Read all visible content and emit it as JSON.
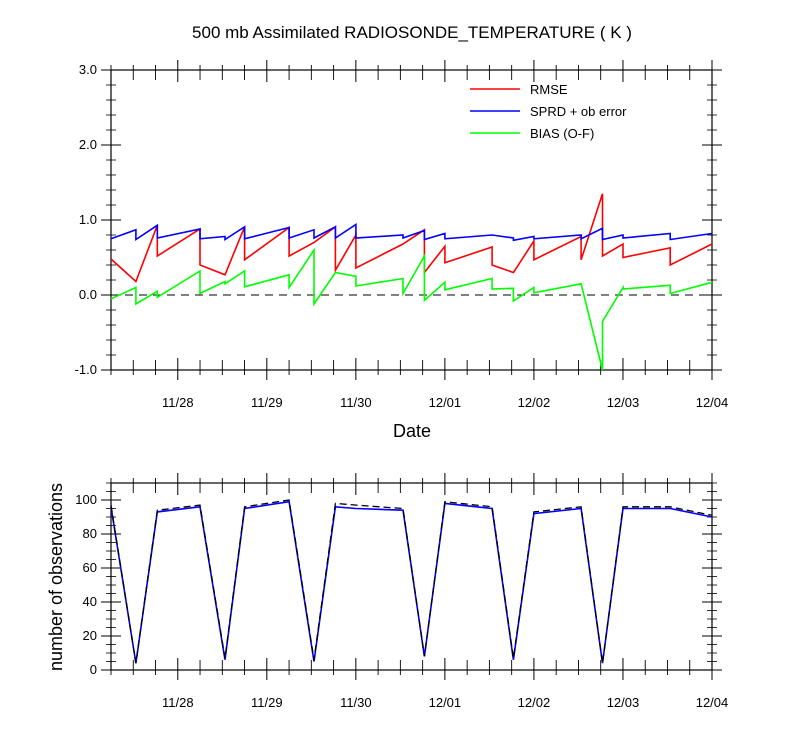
{
  "chart_data": [
    {
      "type": "line",
      "title": "500 mb Assimilated RADIOSONDE_TEMPERATURE ( K )",
      "xlabel": "Date",
      "ylabel": "",
      "ylim": [
        -1.0,
        3.0
      ],
      "yticks": [
        "3.0",
        "2.0",
        "1.0",
        "0.0",
        "-1.0"
      ],
      "ytick_values": [
        3.0,
        2.0,
        1.0,
        0.0,
        -1.0
      ],
      "xlim": [
        27.25,
        34.0
      ],
      "xticks": [
        "11/28",
        "11/29",
        "11/30",
        "12/01",
        "12/02",
        "12/03",
        "12/04"
      ],
      "xtick_values": [
        28,
        29,
        30,
        31,
        32,
        33,
        34
      ],
      "zero_line": "dashed",
      "legend_position": "top-right",
      "series": [
        {
          "name": "RMSE",
          "color": "#ff0000",
          "points": [
            [
              27.25,
              0.48
            ],
            [
              27.53,
              0.18
            ],
            [
              27.77,
              0.93
            ],
            [
              27.77,
              0.52
            ],
            [
              28.25,
              0.88
            ],
            [
              28.25,
              0.4
            ],
            [
              28.53,
              0.27
            ],
            [
              28.75,
              0.91
            ],
            [
              28.75,
              0.47
            ],
            [
              29.25,
              0.9
            ],
            [
              29.25,
              0.52
            ],
            [
              29.53,
              0.7
            ],
            [
              29.77,
              0.91
            ],
            [
              29.77,
              0.33
            ],
            [
              30.0,
              0.8
            ],
            [
              30.0,
              0.36
            ],
            [
              30.53,
              0.68
            ],
            [
              30.77,
              0.87
            ],
            [
              30.77,
              0.3
            ],
            [
              31.0,
              0.65
            ],
            [
              31.0,
              0.43
            ],
            [
              31.53,
              0.64
            ],
            [
              31.53,
              0.4
            ],
            [
              31.77,
              0.3
            ],
            [
              32.0,
              0.72
            ],
            [
              32.0,
              0.47
            ],
            [
              32.53,
              0.78
            ],
            [
              32.53,
              0.47
            ],
            [
              32.77,
              1.35
            ],
            [
              32.77,
              0.52
            ],
            [
              33.0,
              0.68
            ],
            [
              33.0,
              0.5
            ],
            [
              33.53,
              0.63
            ],
            [
              33.53,
              0.4
            ],
            [
              34.0,
              0.68
            ]
          ]
        },
        {
          "name": "SPRD + ob error",
          "color": "#0000ff",
          "points": [
            [
              27.25,
              0.75
            ],
            [
              27.53,
              0.87
            ],
            [
              27.53,
              0.74
            ],
            [
              27.77,
              0.93
            ],
            [
              27.77,
              0.76
            ],
            [
              28.25,
              0.88
            ],
            [
              28.25,
              0.75
            ],
            [
              28.53,
              0.78
            ],
            [
              28.53,
              0.74
            ],
            [
              28.75,
              0.91
            ],
            [
              28.75,
              0.75
            ],
            [
              29.25,
              0.9
            ],
            [
              29.25,
              0.76
            ],
            [
              29.53,
              0.87
            ],
            [
              29.53,
              0.76
            ],
            [
              29.77,
              0.91
            ],
            [
              29.77,
              0.76
            ],
            [
              30.0,
              0.94
            ],
            [
              30.0,
              0.76
            ],
            [
              30.53,
              0.8
            ],
            [
              30.53,
              0.76
            ],
            [
              30.77,
              0.86
            ],
            [
              30.77,
              0.74
            ],
            [
              31.0,
              0.82
            ],
            [
              31.0,
              0.75
            ],
            [
              31.53,
              0.8
            ],
            [
              31.77,
              0.76
            ],
            [
              31.77,
              0.73
            ],
            [
              32.0,
              0.78
            ],
            [
              32.0,
              0.75
            ],
            [
              32.53,
              0.8
            ],
            [
              32.53,
              0.75
            ],
            [
              32.77,
              0.89
            ],
            [
              32.77,
              0.74
            ],
            [
              33.0,
              0.8
            ],
            [
              33.0,
              0.76
            ],
            [
              33.53,
              0.82
            ],
            [
              33.53,
              0.74
            ],
            [
              34.0,
              0.82
            ]
          ]
        },
        {
          "name": "BIAS (O-F)",
          "color": "#00ff00",
          "points": [
            [
              27.25,
              -0.05
            ],
            [
              27.53,
              0.1
            ],
            [
              27.53,
              -0.12
            ],
            [
              27.77,
              0.05
            ],
            [
              27.77,
              -0.03
            ],
            [
              28.25,
              0.32
            ],
            [
              28.25,
              0.02
            ],
            [
              28.53,
              0.18
            ],
            [
              28.53,
              0.15
            ],
            [
              28.75,
              0.32
            ],
            [
              28.75,
              0.11
            ],
            [
              29.25,
              0.27
            ],
            [
              29.25,
              0.1
            ],
            [
              29.53,
              0.6
            ],
            [
              29.53,
              -0.12
            ],
            [
              29.77,
              0.3
            ],
            [
              30.0,
              0.25
            ],
            [
              30.0,
              0.12
            ],
            [
              30.53,
              0.22
            ],
            [
              30.53,
              0.02
            ],
            [
              30.77,
              0.52
            ],
            [
              30.77,
              -0.07
            ],
            [
              31.0,
              0.17
            ],
            [
              31.0,
              0.07
            ],
            [
              31.53,
              0.22
            ],
            [
              31.53,
              0.08
            ],
            [
              31.77,
              0.09
            ],
            [
              31.77,
              -0.08
            ],
            [
              32.0,
              0.1
            ],
            [
              32.0,
              0.03
            ],
            [
              32.53,
              0.15
            ],
            [
              32.77,
              -1.0
            ],
            [
              32.77,
              -0.35
            ],
            [
              33.0,
              0.1
            ],
            [
              33.0,
              0.08
            ],
            [
              33.53,
              0.13
            ],
            [
              33.53,
              0.02
            ],
            [
              34.0,
              0.17
            ]
          ]
        }
      ]
    },
    {
      "type": "line",
      "title": "",
      "xlabel": "",
      "ylabel": "number of observations",
      "ylim": [
        0,
        110
      ],
      "yticks": [
        "0",
        "20",
        "40",
        "60",
        "80",
        "100"
      ],
      "ytick_values": [
        0,
        20,
        40,
        60,
        80,
        100
      ],
      "xlim": [
        27.25,
        34.0
      ],
      "xticks": [
        "11/28",
        "11/29",
        "11/30",
        "12/01",
        "12/02",
        "12/03",
        "12/04"
      ],
      "xtick_values": [
        28,
        29,
        30,
        31,
        32,
        33,
        34
      ],
      "series": [
        {
          "color": "#0000ff",
          "style": "solid",
          "points": [
            [
              27.25,
              96
            ],
            [
              27.53,
              4
            ],
            [
              27.77,
              93
            ],
            [
              28.25,
              96
            ],
            [
              28.53,
              6
            ],
            [
              28.75,
              95
            ],
            [
              29.25,
              99
            ],
            [
              29.53,
              5
            ],
            [
              29.77,
              96
            ],
            [
              30.0,
              95
            ],
            [
              30.53,
              94
            ],
            [
              30.77,
              8
            ],
            [
              31.0,
              98
            ],
            [
              31.53,
              95
            ],
            [
              31.77,
              6
            ],
            [
              32.0,
              92
            ],
            [
              32.53,
              95
            ],
            [
              32.77,
              4
            ],
            [
              33.0,
              95
            ],
            [
              33.53,
              95
            ],
            [
              34.0,
              90
            ]
          ]
        },
        {
          "color": "#000000",
          "style": "dashed",
          "points": [
            [
              27.25,
              97
            ],
            [
              27.53,
              4
            ],
            [
              27.77,
              94
            ],
            [
              28.25,
              97
            ],
            [
              28.53,
              7
            ],
            [
              28.75,
              96
            ],
            [
              29.25,
              100
            ],
            [
              29.53,
              6
            ],
            [
              29.77,
              98
            ],
            [
              30.0,
              97
            ],
            [
              30.53,
              95
            ],
            [
              30.77,
              8
            ],
            [
              31.0,
              99
            ],
            [
              31.53,
              96
            ],
            [
              31.77,
              7
            ],
            [
              32.0,
              93
            ],
            [
              32.53,
              96
            ],
            [
              32.77,
              4
            ],
            [
              33.0,
              96
            ],
            [
              33.53,
              96
            ],
            [
              34.0,
              91
            ]
          ]
        }
      ]
    }
  ]
}
